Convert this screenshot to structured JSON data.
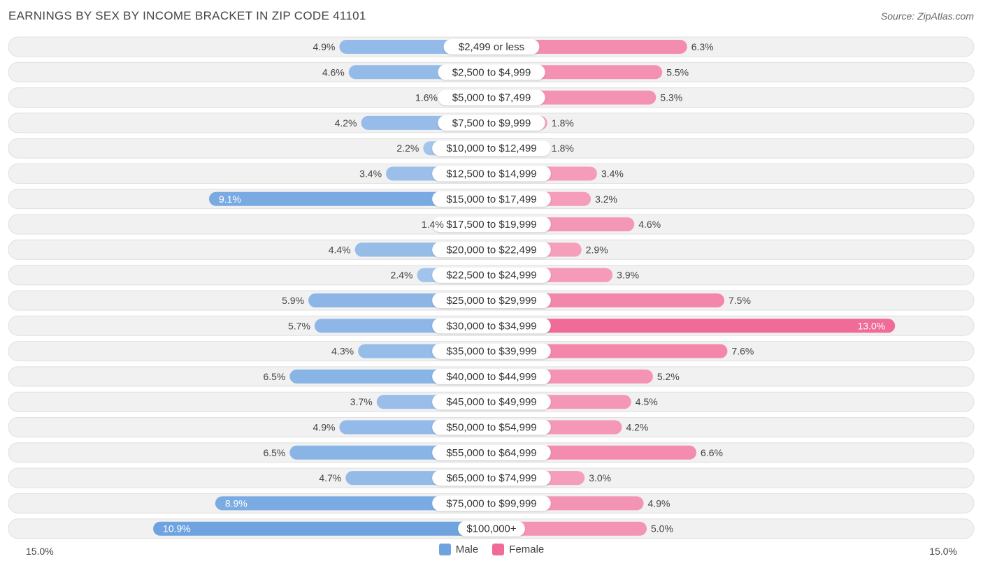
{
  "chart_data": {
    "type": "bar",
    "orientation": "horizontal-diverging",
    "title": "EARNINGS BY SEX BY INCOME BRACKET IN ZIP CODE 41101",
    "source": "Source: ZipAtlas.com",
    "categories": [
      "$2,499 or less",
      "$2,500 to $4,999",
      "$5,000 to $7,499",
      "$7,500 to $9,999",
      "$10,000 to $12,499",
      "$12,500 to $14,999",
      "$15,000 to $17,499",
      "$17,500 to $19,999",
      "$20,000 to $22,499",
      "$22,500 to $24,999",
      "$25,000 to $29,999",
      "$30,000 to $34,999",
      "$35,000 to $39,999",
      "$40,000 to $44,999",
      "$45,000 to $49,999",
      "$50,000 to $54,999",
      "$55,000 to $64,999",
      "$65,000 to $74,999",
      "$75,000 to $99,999",
      "$100,000+"
    ],
    "series": [
      {
        "name": "Male",
        "values": [
          4.9,
          4.6,
          1.6,
          4.2,
          2.2,
          3.4,
          9.1,
          1.4,
          4.4,
          2.4,
          5.9,
          5.7,
          4.3,
          6.5,
          3.7,
          4.9,
          6.5,
          4.7,
          8.9,
          10.9
        ],
        "labels": [
          "4.9%",
          "4.6%",
          "1.6%",
          "4.2%",
          "2.2%",
          "3.4%",
          "9.1%",
          "1.4%",
          "4.4%",
          "2.4%",
          "5.9%",
          "5.7%",
          "4.3%",
          "6.5%",
          "3.7%",
          "4.9%",
          "6.5%",
          "4.7%",
          "8.9%",
          "10.9%"
        ],
        "color": "#6fa3e0"
      },
      {
        "name": "Female",
        "values": [
          6.3,
          5.5,
          5.3,
          1.8,
          1.8,
          3.4,
          3.2,
          4.6,
          2.9,
          3.9,
          7.5,
          13.0,
          7.6,
          5.2,
          4.5,
          4.2,
          6.6,
          3.0,
          4.9,
          5.0
        ],
        "labels": [
          "6.3%",
          "5.5%",
          "5.3%",
          "1.8%",
          "1.8%",
          "3.4%",
          "3.2%",
          "4.6%",
          "2.9%",
          "3.9%",
          "7.5%",
          "13.0%",
          "7.6%",
          "5.2%",
          "4.5%",
          "4.2%",
          "6.6%",
          "3.0%",
          "4.9%",
          "5.0%"
        ],
        "color": "#f06b97"
      }
    ],
    "xlim": [
      0,
      15.0
    ],
    "axis_min_label": "15.0%",
    "axis_max_label": "15.0%",
    "legend_position": "bottom-center"
  }
}
